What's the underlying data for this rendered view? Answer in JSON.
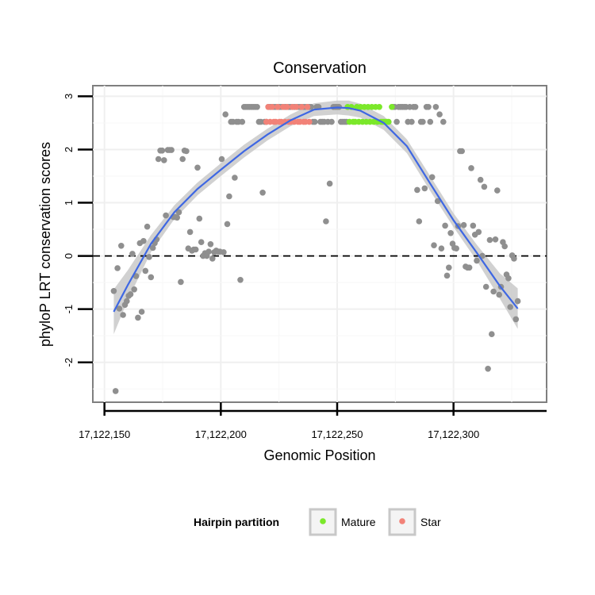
{
  "chart_data": {
    "type": "scatter",
    "title": "Conservation",
    "xlabel": "Genomic Position",
    "ylabel": "phyloP LRT conservation scores",
    "xlim": [
      17122145,
      17122340
    ],
    "ylim": [
      -2.75,
      3.2
    ],
    "x_ticks": [
      17122150,
      17122200,
      17122250,
      17122300
    ],
    "x_tick_labels": [
      "17,122,150",
      "17,122,200",
      "17,122,250",
      "17,122,300"
    ],
    "y_ticks": [
      -2,
      -1,
      0,
      1,
      2,
      3
    ],
    "y_tick_labels": [
      "-2",
      "-1",
      "0",
      "1",
      "2",
      "3"
    ],
    "reference_line": {
      "y": 0,
      "style": "dashed"
    },
    "legend": {
      "title": "Hairpin partition",
      "position": "bottom",
      "entries": [
        {
          "label": "Mature",
          "color": "#7be82a"
        },
        {
          "label": "Star",
          "color": "#f28278"
        }
      ]
    },
    "colors": {
      "other": "#8f8f8f",
      "mature": "#7be82a",
      "star": "#f28278",
      "smooth_line": "#3e67e3",
      "ribbon": "#c9c9c9"
    },
    "series": [
      {
        "name": "Other",
        "points": [
          [
            17122154,
            -0.66
          ],
          [
            17122154.8,
            -2.54
          ],
          [
            17122155.6,
            -0.23
          ],
          [
            17122156.4,
            -0.99
          ],
          [
            17122157.2,
            0.19
          ],
          [
            17122158,
            -1.11
          ],
          [
            17122158.8,
            -0.92
          ],
          [
            17122159.6,
            -0.85
          ],
          [
            17122160.4,
            -0.75
          ],
          [
            17122161.2,
            -0.72
          ],
          [
            17122162,
            0.04
          ],
          [
            17122162.8,
            -0.63
          ],
          [
            17122163.6,
            -0.38
          ],
          [
            17122164.4,
            -1.16
          ],
          [
            17122165.2,
            0.24
          ],
          [
            17122166,
            -1.05
          ],
          [
            17122166.8,
            0.28
          ],
          [
            17122167.6,
            -0.28
          ],
          [
            17122168.4,
            0.55
          ],
          [
            17122169.2,
            -0.02
          ],
          [
            17122170,
            -0.4
          ],
          [
            17122170.8,
            0.15
          ],
          [
            17122171.6,
            0.24
          ],
          [
            17122172.4,
            0.31
          ],
          [
            17122173.2,
            1.82
          ],
          [
            17122174,
            1.98
          ],
          [
            17122174.8,
            1.98
          ],
          [
            17122175.6,
            1.8
          ],
          [
            17122176.4,
            0.76
          ],
          [
            17122177.2,
            1.99
          ],
          [
            17122178,
            1.99
          ],
          [
            17122178.8,
            1.99
          ],
          [
            17122179.6,
            0.73
          ],
          [
            17122180.4,
            0.73
          ],
          [
            17122181.2,
            0.72
          ],
          [
            17122182,
            0.82
          ],
          [
            17122182.8,
            -0.49
          ],
          [
            17122183.6,
            1.82
          ],
          [
            17122184.4,
            1.98
          ],
          [
            17122185.2,
            1.97
          ],
          [
            17122186,
            0.14
          ],
          [
            17122186.8,
            0.45
          ],
          [
            17122187.6,
            0.1
          ],
          [
            17122188.4,
            0.12
          ],
          [
            17122189.2,
            0.12
          ],
          [
            17122190,
            1.66
          ],
          [
            17122190.8,
            0.7
          ],
          [
            17122191.6,
            0.26
          ],
          [
            17122192.4,
            0.0
          ],
          [
            17122193.2,
            0.05
          ],
          [
            17122194,
            0.0
          ],
          [
            17122194.8,
            0.08
          ],
          [
            17122195.6,
            0.22
          ],
          [
            17122196.4,
            -0.05
          ],
          [
            17122197.2,
            0.07
          ],
          [
            17122198,
            0.1
          ],
          [
            17122198.8,
            0.08
          ],
          [
            17122199.6,
            0.08
          ],
          [
            17122200.4,
            1.82
          ],
          [
            17122201.2,
            0.07
          ],
          [
            17122202,
            2.66
          ],
          [
            17122202.8,
            0.6
          ],
          [
            17122203.6,
            1.12
          ],
          [
            17122204.4,
            2.52
          ],
          [
            17122205.2,
            2.52
          ],
          [
            17122206,
            1.47
          ],
          [
            17122206.8,
            2.52
          ],
          [
            17122207.6,
            2.52
          ],
          [
            17122208.4,
            -0.45
          ],
          [
            17122209.2,
            2.52
          ],
          [
            17122210,
            2.8
          ],
          [
            17122210.8,
            2.8
          ],
          [
            17122211.6,
            2.8
          ],
          [
            17122212.4,
            2.8
          ],
          [
            17122213.2,
            2.8
          ],
          [
            17122214,
            2.8
          ],
          [
            17122214.8,
            2.8
          ],
          [
            17122215.6,
            2.8
          ],
          [
            17122216.4,
            2.52
          ],
          [
            17122217.2,
            2.52
          ],
          [
            17122218,
            1.19
          ],
          [
            17122218.8,
            2.52
          ],
          [
            17122219.6,
            2.52
          ],
          [
            17122220.4,
            2.8
          ],
          [
            17122221.2,
            2.8
          ],
          [
            17122222,
            2.8
          ],
          [
            17122222.8,
            2.8
          ],
          [
            17122223.6,
            2.8
          ],
          [
            17122224.4,
            2.8
          ],
          [
            17122225.2,
            2.8
          ],
          [
            17122226,
            2.8
          ],
          [
            17122226.8,
            2.8
          ],
          [
            17122227.6,
            2.8
          ],
          [
            17122228.4,
            2.8
          ],
          [
            17122229.2,
            2.8
          ],
          [
            17122230,
            2.8
          ],
          [
            17122230.8,
            2.8
          ],
          [
            17122231.6,
            2.8
          ],
          [
            17122232.4,
            2.8
          ],
          [
            17122233.2,
            2.8
          ],
          [
            17122234,
            2.8
          ],
          [
            17122234.8,
            2.8
          ],
          [
            17122235.6,
            2.8
          ],
          [
            17122236.4,
            2.8
          ],
          [
            17122237.2,
            2.8
          ],
          [
            17122238,
            2.8
          ],
          [
            17122238.8,
            2.8
          ],
          [
            17122239.6,
            2.52
          ],
          [
            17122240.4,
            2.52
          ],
          [
            17122241.2,
            2.8
          ],
          [
            17122242,
            2.8
          ],
          [
            17122242.8,
            2.52
          ],
          [
            17122243.6,
            2.52
          ],
          [
            17122244.4,
            2.52
          ],
          [
            17122245.2,
            0.65
          ],
          [
            17122246,
            2.52
          ],
          [
            17122246.8,
            1.36
          ],
          [
            17122247.6,
            2.52
          ],
          [
            17122248.4,
            2.8
          ],
          [
            17122249.2,
            2.8
          ],
          [
            17122250,
            2.8
          ],
          [
            17122250.8,
            2.8
          ],
          [
            17122251.6,
            2.52
          ],
          [
            17122252.4,
            2.52
          ],
          [
            17122253.2,
            2.52
          ],
          [
            17122254,
            2.52
          ],
          [
            17122274,
            2.8
          ],
          [
            17122274.8,
            2.8
          ],
          [
            17122275.6,
            2.52
          ],
          [
            17122276.4,
            2.8
          ],
          [
            17122277.2,
            2.8
          ],
          [
            17122278,
            2.8
          ],
          [
            17122278.8,
            2.8
          ],
          [
            17122279.6,
            2.8
          ],
          [
            17122280.4,
            2.52
          ],
          [
            17122281.2,
            2.8
          ],
          [
            17122282,
            2.52
          ],
          [
            17122282.8,
            2.8
          ],
          [
            17122283.6,
            2.8
          ],
          [
            17122284.4,
            1.24
          ],
          [
            17122285.2,
            0.65
          ],
          [
            17122286,
            2.52
          ],
          [
            17122286.8,
            2.52
          ],
          [
            17122287.6,
            1.27
          ],
          [
            17122288.4,
            2.8
          ],
          [
            17122289.2,
            2.8
          ],
          [
            17122290,
            2.52
          ],
          [
            17122290.8,
            1.48
          ],
          [
            17122291.6,
            0.2
          ],
          [
            17122292.4,
            2.8
          ],
          [
            17122293.2,
            1.03
          ],
          [
            17122294,
            2.66
          ],
          [
            17122294.8,
            0.14
          ],
          [
            17122295.6,
            2.52
          ],
          [
            17122296.4,
            0.57
          ],
          [
            17122297.2,
            -0.37
          ],
          [
            17122298,
            -0.22
          ],
          [
            17122298.8,
            0.43
          ],
          [
            17122299.6,
            0.23
          ],
          [
            17122300.4,
            0.15
          ],
          [
            17122301.2,
            0.14
          ],
          [
            17122302,
            0.56
          ],
          [
            17122302.8,
            1.97
          ],
          [
            17122303.6,
            1.97
          ],
          [
            17122304.4,
            0.58
          ],
          [
            17122305.2,
            -0.2
          ],
          [
            17122306,
            -0.22
          ],
          [
            17122306.8,
            -0.22
          ],
          [
            17122307.6,
            1.65
          ],
          [
            17122308.4,
            0.57
          ],
          [
            17122309.2,
            0.4
          ],
          [
            17122310,
            -0.09
          ],
          [
            17122310.8,
            0.45
          ],
          [
            17122311.6,
            1.43
          ],
          [
            17122312.4,
            0.0
          ],
          [
            17122313.2,
            1.3
          ],
          [
            17122314,
            -0.58
          ],
          [
            17122314.8,
            -2.12
          ],
          [
            17122315.6,
            0.3
          ],
          [
            17122316.4,
            -1.47
          ],
          [
            17122317.2,
            -0.67
          ],
          [
            17122318,
            0.31
          ],
          [
            17122318.8,
            1.23
          ],
          [
            17122319.6,
            -0.73
          ],
          [
            17122320.4,
            -0.58
          ],
          [
            17122321.2,
            0.26
          ],
          [
            17122322,
            0.18
          ],
          [
            17122322.8,
            -0.35
          ],
          [
            17122323.6,
            -0.42
          ],
          [
            17122324.4,
            -0.96
          ],
          [
            17122325.2,
            0.01
          ],
          [
            17122326,
            -0.05
          ],
          [
            17122326.8,
            -1.19
          ],
          [
            17122327.6,
            -0.85
          ]
        ]
      },
      {
        "name": "Mature",
        "points": [
          [
            17122254.5,
            2.8
          ],
          [
            17122255.3,
            2.52
          ],
          [
            17122256.1,
            2.8
          ],
          [
            17122256.9,
            2.52
          ],
          [
            17122257.7,
            2.52
          ],
          [
            17122258.5,
            2.8
          ],
          [
            17122259.3,
            2.52
          ],
          [
            17122260.1,
            2.8
          ],
          [
            17122260.9,
            2.52
          ],
          [
            17122261.7,
            2.8
          ],
          [
            17122262.5,
            2.52
          ],
          [
            17122263.3,
            2.8
          ],
          [
            17122264.1,
            2.52
          ],
          [
            17122264.9,
            2.8
          ],
          [
            17122265.7,
            2.52
          ],
          [
            17122266.5,
            2.8
          ],
          [
            17122267.3,
            2.52
          ],
          [
            17122268.1,
            2.8
          ],
          [
            17122268.9,
            2.52
          ],
          [
            17122269.7,
            2.52
          ],
          [
            17122270.5,
            2.52
          ],
          [
            17122271.3,
            2.52
          ],
          [
            17122272.1,
            2.52
          ],
          [
            17122273.5,
            2.8
          ]
        ]
      },
      {
        "name": "Star",
        "points": [
          [
            17122219.6,
            2.52
          ],
          [
            17122220.4,
            2.8
          ],
          [
            17122221.2,
            2.52
          ],
          [
            17122222,
            2.8
          ],
          [
            17122222.8,
            2.52
          ],
          [
            17122223.6,
            2.52
          ],
          [
            17122224.4,
            2.8
          ],
          [
            17122225.2,
            2.52
          ],
          [
            17122226,
            2.52
          ],
          [
            17122226.8,
            2.8
          ],
          [
            17122227.6,
            2.52
          ],
          [
            17122228.4,
            2.8
          ],
          [
            17122229.2,
            2.52
          ],
          [
            17122230,
            2.52
          ],
          [
            17122230.8,
            2.8
          ],
          [
            17122231.6,
            2.52
          ],
          [
            17122232.4,
            2.8
          ],
          [
            17122233.2,
            2.52
          ],
          [
            17122234,
            2.52
          ],
          [
            17122234.8,
            2.8
          ],
          [
            17122235.6,
            2.52
          ],
          [
            17122236.4,
            2.52
          ],
          [
            17122237.2,
            2.8
          ],
          [
            17122238,
            2.52
          ]
        ]
      }
    ],
    "smooth": {
      "x": [
        17122154,
        17122160,
        17122170,
        17122180,
        17122190,
        17122200,
        17122210,
        17122220,
        17122230,
        17122240,
        17122250,
        17122255,
        17122260,
        17122270,
        17122280,
        17122290,
        17122300,
        17122310,
        17122320,
        17122327.6
      ],
      "y": [
        -1.05,
        -0.55,
        0.23,
        0.82,
        1.26,
        1.62,
        1.97,
        2.28,
        2.55,
        2.75,
        2.79,
        2.78,
        2.73,
        2.5,
        2.06,
        1.36,
        0.67,
        0.06,
        -0.57,
        -0.99
      ],
      "se": [
        0.42,
        0.28,
        0.16,
        0.13,
        0.12,
        0.12,
        0.12,
        0.11,
        0.11,
        0.12,
        0.13,
        0.14,
        0.13,
        0.13,
        0.13,
        0.14,
        0.13,
        0.15,
        0.24,
        0.38
      ]
    }
  }
}
